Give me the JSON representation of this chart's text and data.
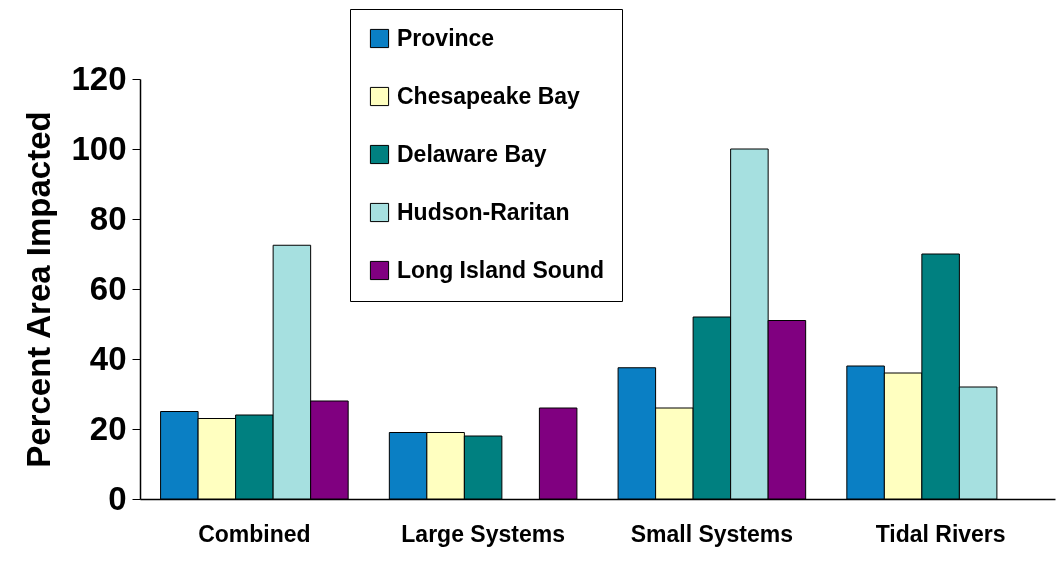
{
  "chart_data": {
    "type": "bar",
    "ylabel": "Percent Area Impacted",
    "categories": [
      "Combined",
      "Large Systems",
      "Small Systems",
      "Tidal Rivers"
    ],
    "series": [
      {
        "name": "Province",
        "color": "#0a7fc4",
        "values": [
          25,
          19,
          37.5,
          38
        ]
      },
      {
        "name": "Chesapeake Bay",
        "color": "#ffffc0",
        "values": [
          23,
          19,
          26,
          36
        ]
      },
      {
        "name": "Delaware Bay",
        "color": "#008080",
        "values": [
          24,
          18,
          52,
          70
        ]
      },
      {
        "name": "Hudson-Raritan",
        "color": "#a6e0e0",
        "values": [
          72.5,
          null,
          100,
          32
        ]
      },
      {
        "name": "Long Island Sound",
        "color": "#800080",
        "values": [
          28,
          26,
          51,
          null
        ]
      }
    ],
    "ylim": [
      0,
      120
    ],
    "yticks": [
      0,
      20,
      40,
      60,
      80,
      100,
      120
    ],
    "grid": false,
    "legend": "top"
  }
}
